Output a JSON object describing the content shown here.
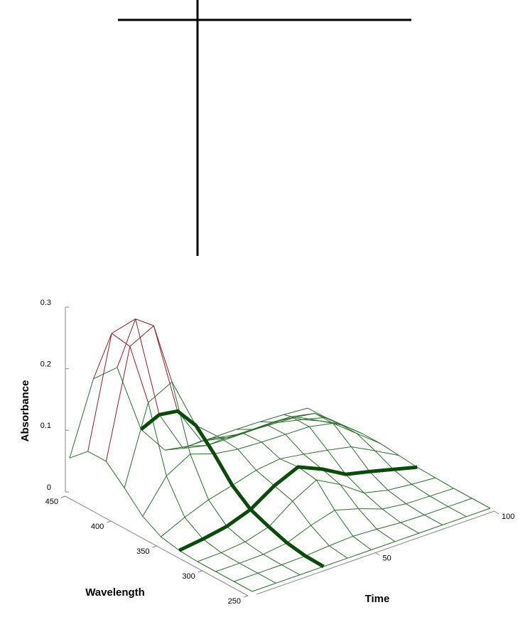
{
  "chart_data": {
    "type": "surface",
    "xlabel": "Wavelength",
    "ylabel": "Time",
    "zlabel": "Absorbance",
    "x": [
      250,
      270,
      290,
      310,
      330,
      350,
      370,
      390,
      410,
      430,
      450
    ],
    "y": [
      0,
      10,
      20,
      30,
      40,
      50,
      60,
      70,
      80,
      90,
      100
    ],
    "z": [
      [
        0,
        0,
        0,
        0,
        0,
        0,
        0,
        0,
        0,
        0,
        0
      ],
      [
        0,
        0,
        0,
        0.001,
        0.004,
        0.006,
        0.004,
        0.001,
        0,
        0,
        0
      ],
      [
        0,
        0,
        0.001,
        0.006,
        0.021,
        0.032,
        0.021,
        0.007,
        0.002,
        0.001,
        0
      ],
      [
        0,
        0.001,
        0.005,
        0.016,
        0.044,
        0.065,
        0.044,
        0.017,
        0.008,
        0.004,
        0.001
      ],
      [
        0.002,
        0.007,
        0.014,
        0.028,
        0.053,
        0.07,
        0.053,
        0.031,
        0.022,
        0.012,
        0.002
      ],
      [
        0.008,
        0.026,
        0.041,
        0.051,
        0.062,
        0.067,
        0.061,
        0.054,
        0.046,
        0.026,
        0.005
      ],
      [
        0.025,
        0.077,
        0.099,
        0.086,
        0.08,
        0.078,
        0.077,
        0.076,
        0.068,
        0.038,
        0.008
      ],
      [
        0.055,
        0.18,
        0.2,
        0.116,
        0.083,
        0.076,
        0.076,
        0.076,
        0.068,
        0.038,
        0.008
      ],
      [
        0.082,
        0.255,
        0.275,
        0.123,
        0.061,
        0.052,
        0.051,
        0.051,
        0.046,
        0.026,
        0.005
      ],
      [
        0.082,
        0.26,
        0.27,
        0.101,
        0.033,
        0.024,
        0.023,
        0.023,
        0.021,
        0.012,
        0.002
      ],
      [
        0.055,
        0.17,
        0.175,
        0.061,
        0.014,
        0.007,
        0.007,
        0.007,
        0.006,
        0.004,
        0.001
      ]
    ],
    "xlim": [
      250,
      450
    ],
    "ylim": [
      0,
      100
    ],
    "zlim": [
      0,
      0.3
    ],
    "xticks": [
      250,
      300,
      350,
      400,
      450
    ],
    "yticks": [
      50,
      100
    ],
    "zticks": [
      0,
      0.1,
      0.2,
      0.3
    ],
    "color": "#2e6b2e",
    "high_color": "#8b2323",
    "high_threshold": 0.2,
    "highlight_color": "#0b4a0b",
    "highlight_x": 330,
    "highlight_y": 30
  }
}
